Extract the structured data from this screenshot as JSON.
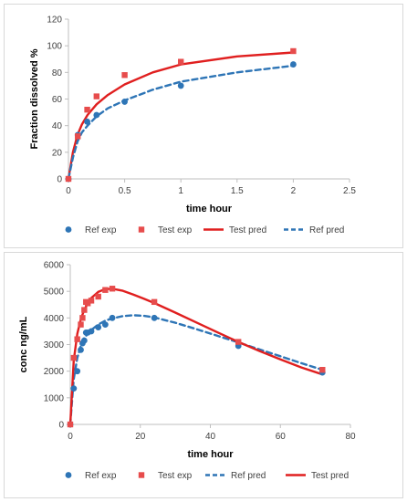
{
  "colors": {
    "ref": "#2E75B6",
    "test": "#E74C4C",
    "test_line": "#E01F1F",
    "axis": "#bfbfbf",
    "text": "#404040"
  },
  "chart_data": [
    {
      "type": "scatter",
      "title": "",
      "xlabel": "time hour",
      "ylabel": "Fraction dissolved %",
      "xlim": [
        0,
        2.5
      ],
      "ylim": [
        0,
        120
      ],
      "xticks": [
        "0",
        "0.5",
        "1",
        "1.5",
        "2",
        "2.5"
      ],
      "yticks": [
        "0",
        "20",
        "40",
        "60",
        "80",
        "100",
        "120"
      ],
      "grid": false,
      "legend_position": "bottom",
      "series": [
        {
          "name": "Ref exp",
          "kind": "marker-circle",
          "color": "#2E75B6",
          "x": [
            0,
            0.083,
            0.167,
            0.25,
            0.5,
            1,
            2
          ],
          "y": [
            0,
            33,
            43,
            48,
            58,
            70,
            86
          ]
        },
        {
          "name": "Test exp",
          "kind": "marker-square",
          "color": "#E74C4C",
          "x": [
            0,
            0.083,
            0.167,
            0.25,
            0.5,
            1,
            2
          ],
          "y": [
            0,
            32,
            52,
            62,
            78,
            88,
            96
          ]
        },
        {
          "name": "Test pred",
          "kind": "line-solid",
          "color": "#E01F1F",
          "x": [
            0,
            0.04,
            0.08,
            0.12,
            0.17,
            0.25,
            0.35,
            0.5,
            0.75,
            1,
            1.5,
            2
          ],
          "y": [
            0,
            20,
            33,
            41,
            48,
            56,
            63,
            71,
            80,
            86,
            92,
            95
          ]
        },
        {
          "name": "Ref pred",
          "kind": "line-dashed",
          "color": "#2E75B6",
          "x": [
            0,
            0.04,
            0.08,
            0.12,
            0.17,
            0.25,
            0.35,
            0.5,
            0.75,
            1,
            1.5,
            2
          ],
          "y": [
            0,
            16,
            28,
            35,
            40,
            47,
            53,
            59,
            67,
            73,
            80,
            85
          ]
        }
      ],
      "legend_order": [
        "Ref exp",
        "Test exp",
        "Test pred",
        "Ref pred"
      ]
    },
    {
      "type": "scatter",
      "title": "",
      "xlabel": "time hour",
      "ylabel": "conc ng/mL",
      "xlim": [
        0,
        80
      ],
      "ylim": [
        0,
        6000
      ],
      "xticks": [
        "0",
        "20",
        "40",
        "60",
        "80"
      ],
      "yticks": [
        "0",
        "1000",
        "2000",
        "3000",
        "4000",
        "5000",
        "6000"
      ],
      "grid": false,
      "legend_position": "bottom",
      "series": [
        {
          "name": "Ref exp",
          "kind": "marker-circle",
          "color": "#2E75B6",
          "x": [
            0,
            1,
            2,
            3,
            3.5,
            4,
            4.5,
            5,
            6,
            8,
            10,
            12,
            24,
            48,
            72
          ],
          "y": [
            0,
            1350,
            2000,
            2800,
            3050,
            3150,
            3450,
            3450,
            3500,
            3650,
            3750,
            4000,
            4000,
            2950,
            1950
          ]
        },
        {
          "name": "Test exp",
          "kind": "marker-square",
          "color": "#E74C4C",
          "x": [
            0,
            1,
            2,
            3,
            3.5,
            4,
            4.5,
            5,
            6,
            8,
            10,
            12,
            24,
            48,
            72
          ],
          "y": [
            0,
            2500,
            3200,
            3750,
            4000,
            4300,
            4600,
            4550,
            4650,
            4800,
            5050,
            5100,
            4600,
            3100,
            2050
          ]
        },
        {
          "name": "Ref pred",
          "kind": "line-dashed",
          "color": "#2E75B6",
          "x": [
            0,
            1,
            2,
            3,
            4,
            6,
            8,
            10,
            12,
            15,
            18,
            21,
            24,
            30,
            36,
            42,
            48,
            54,
            60,
            66,
            72
          ],
          "y": [
            0,
            1700,
            2500,
            2950,
            3250,
            3550,
            3750,
            3900,
            3980,
            4070,
            4100,
            4080,
            4020,
            3820,
            3580,
            3330,
            3080,
            2820,
            2560,
            2300,
            2050
          ]
        },
        {
          "name": "Test pred",
          "kind": "line-solid",
          "color": "#E01F1F",
          "x": [
            0,
            1,
            2,
            3,
            4,
            5,
            6,
            8,
            10,
            12,
            15,
            18,
            21,
            24,
            30,
            36,
            42,
            48,
            54,
            60,
            66,
            72
          ],
          "y": [
            0,
            2400,
            3400,
            3950,
            4300,
            4550,
            4750,
            4980,
            5080,
            5100,
            5020,
            4880,
            4720,
            4560,
            4200,
            3830,
            3460,
            3100,
            2760,
            2440,
            2140,
            1880
          ]
        }
      ],
      "legend_order": [
        "Ref exp",
        "Test exp",
        "Ref pred",
        "Test pred"
      ]
    }
  ]
}
